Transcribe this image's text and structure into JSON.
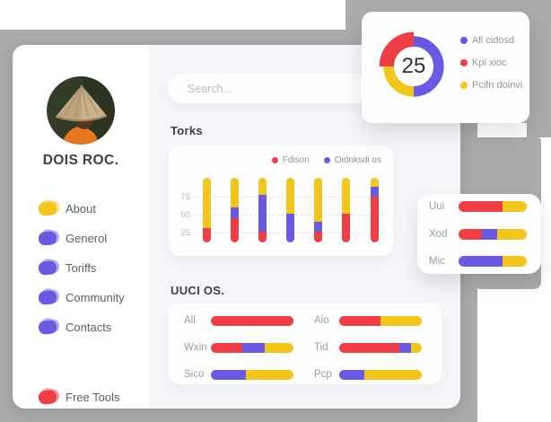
{
  "palette": {
    "red": "#ee3e46",
    "yellow": "#f2c51f",
    "purple": "#6a5ae2",
    "red_light": "#f5848a",
    "yellow_light": "#f7d96d",
    "purple_light": "#a59cf0",
    "gray_shape": "#ababab",
    "content_bg": "#f5f6f9"
  },
  "sidebar": {
    "profile_name": "DOIS ROC.",
    "items": [
      {
        "label": "About",
        "color": "yellow"
      },
      {
        "label": "Generol",
        "color": "purple"
      },
      {
        "label": "Toriffs",
        "color": "purple"
      },
      {
        "label": "Community",
        "color": "purple"
      },
      {
        "label": "Contacts",
        "color": "purple"
      }
    ],
    "footer_item": {
      "label": "Free Tools",
      "color": "red"
    }
  },
  "search": {
    "placeholder": "Search..."
  },
  "torks": {
    "title": "Torks",
    "legend": [
      {
        "label": "Fdison",
        "color": "red"
      },
      {
        "label": "Oidnksdi os",
        "color": "purple"
      }
    ],
    "y_ticks": [
      "75",
      "50",
      "25"
    ],
    "bars": [
      [
        [
          "red",
          22
        ],
        [
          "yellow",
          78
        ]
      ],
      [
        [
          "red",
          37
        ],
        [
          "purple",
          17
        ],
        [
          "yellow",
          46
        ]
      ],
      [
        [
          "red",
          16
        ],
        [
          "purple",
          57
        ],
        [
          "yellow",
          27
        ]
      ],
      [
        [
          "purple",
          44
        ],
        [
          "yellow",
          56
        ]
      ],
      [
        [
          "red",
          16
        ],
        [
          "purple",
          16
        ],
        [
          "yellow",
          68
        ]
      ],
      [
        [
          "red",
          44
        ],
        [
          "yellow",
          56
        ]
      ],
      [
        [
          "red",
          71
        ],
        [
          "purple",
          15
        ],
        [
          "yellow",
          14
        ]
      ]
    ]
  },
  "donut": {
    "value": "25",
    "slices": [
      {
        "label": "All cidosd",
        "color": "purple",
        "pct": 50
      },
      {
        "label": "Kpi xioc",
        "color": "red",
        "pct": 25
      },
      {
        "label": "Pcifn doinvi",
        "color": "yellow",
        "pct": 25
      }
    ]
  },
  "mini": {
    "rows": [
      {
        "label": "Uui",
        "segments": [
          [
            "red",
            64
          ],
          [
            "yellow",
            36
          ]
        ]
      },
      {
        "label": "Xod",
        "segments": [
          [
            "red",
            34
          ],
          [
            "purple",
            22
          ],
          [
            "yellow",
            44
          ]
        ]
      },
      {
        "label": "Mic",
        "segments": [
          [
            "purple",
            64
          ],
          [
            "yellow",
            36
          ]
        ]
      }
    ]
  },
  "uuci": {
    "title": "UUCI OS.",
    "left_rows": [
      {
        "label": "All",
        "segments": [
          [
            "red",
            100
          ]
        ]
      },
      {
        "label": "Wxin",
        "segments": [
          [
            "red",
            38
          ],
          [
            "purple",
            27
          ],
          [
            "yellow",
            35
          ]
        ]
      },
      {
        "label": "Sico",
        "segments": [
          [
            "purple",
            42
          ],
          [
            "yellow",
            58
          ]
        ]
      }
    ],
    "right_rows": [
      {
        "label": "Aio",
        "segments": [
          [
            "red",
            50
          ],
          [
            "yellow",
            50
          ]
        ]
      },
      {
        "label": "Tid",
        "segments": [
          [
            "red",
            73
          ],
          [
            "purple",
            14
          ],
          [
            "yellow",
            13
          ]
        ]
      },
      {
        "label": "Pcp",
        "segments": [
          [
            "purple",
            30
          ],
          [
            "yellow",
            70
          ]
        ]
      }
    ]
  }
}
